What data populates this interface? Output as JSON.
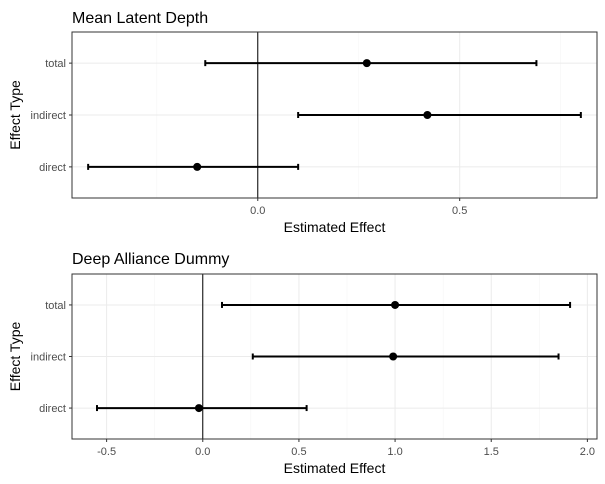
{
  "chart_data": [
    {
      "type": "errorbar",
      "title": "Mean Latent Depth",
      "xlabel": "Estimated Effect",
      "ylabel": "Effect Type",
      "categories": [
        "total",
        "indirect",
        "direct"
      ],
      "estimates": [
        0.27,
        0.42,
        -0.15
      ],
      "lower": [
        -0.13,
        0.1,
        -0.42
      ],
      "upper": [
        0.69,
        0.8,
        0.1
      ],
      "xlim": [
        -0.46,
        0.84
      ],
      "xticks": [
        0.0,
        0.5
      ],
      "xtick_labels": [
        "0.0",
        "0.5"
      ],
      "reference_line": 0,
      "grid": true
    },
    {
      "type": "errorbar",
      "title": "Deep Alliance Dummy",
      "xlabel": "Estimated Effect",
      "ylabel": "Effect Type",
      "categories": [
        "total",
        "indirect",
        "direct"
      ],
      "estimates": [
        1.0,
        0.99,
        -0.02
      ],
      "lower": [
        0.1,
        0.26,
        -0.55
      ],
      "upper": [
        1.91,
        1.85,
        0.54
      ],
      "xlim": [
        -0.68,
        2.05
      ],
      "xticks": [
        -0.5,
        0.0,
        0.5,
        1.0,
        1.5,
        2.0
      ],
      "xtick_labels": [
        "-0.5",
        "0.0",
        "0.5",
        "1.0",
        "1.5",
        "2.0"
      ],
      "reference_line": 0,
      "grid": true
    }
  ]
}
